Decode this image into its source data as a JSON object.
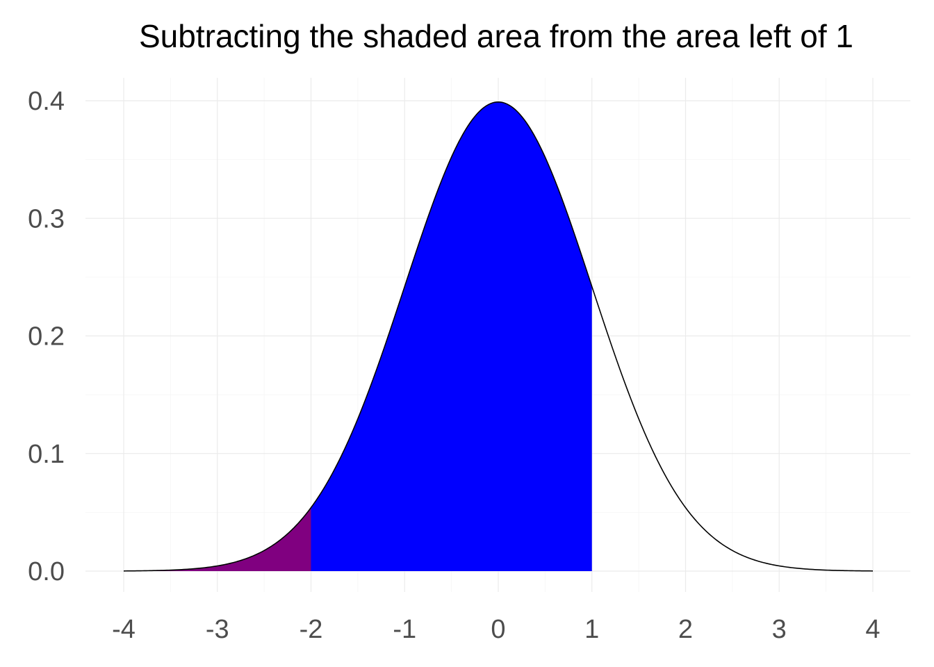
{
  "chart_data": {
    "type": "area",
    "title": "Subtracting the shaded area from the area left of 1",
    "xlabel": "",
    "ylabel": "",
    "xlim": [
      -4,
      4
    ],
    "ylim": [
      0,
      0.4
    ],
    "x_ticks": [
      "-4",
      "-3",
      "-2",
      "-1",
      "0",
      "1",
      "2",
      "3",
      "4"
    ],
    "y_ticks": [
      "0.0",
      "0.1",
      "0.2",
      "0.3",
      "0.4"
    ],
    "grid": true,
    "legend": "none",
    "curve": {
      "distribution": "standard normal density",
      "x_range": [
        -4,
        4
      ],
      "color": "#000000"
    },
    "shaded_regions": [
      {
        "x_from": -4,
        "x_to": 1,
        "color": "#0000ff"
      },
      {
        "x_from": -4,
        "x_to": -2,
        "color": "#800080"
      }
    ]
  }
}
